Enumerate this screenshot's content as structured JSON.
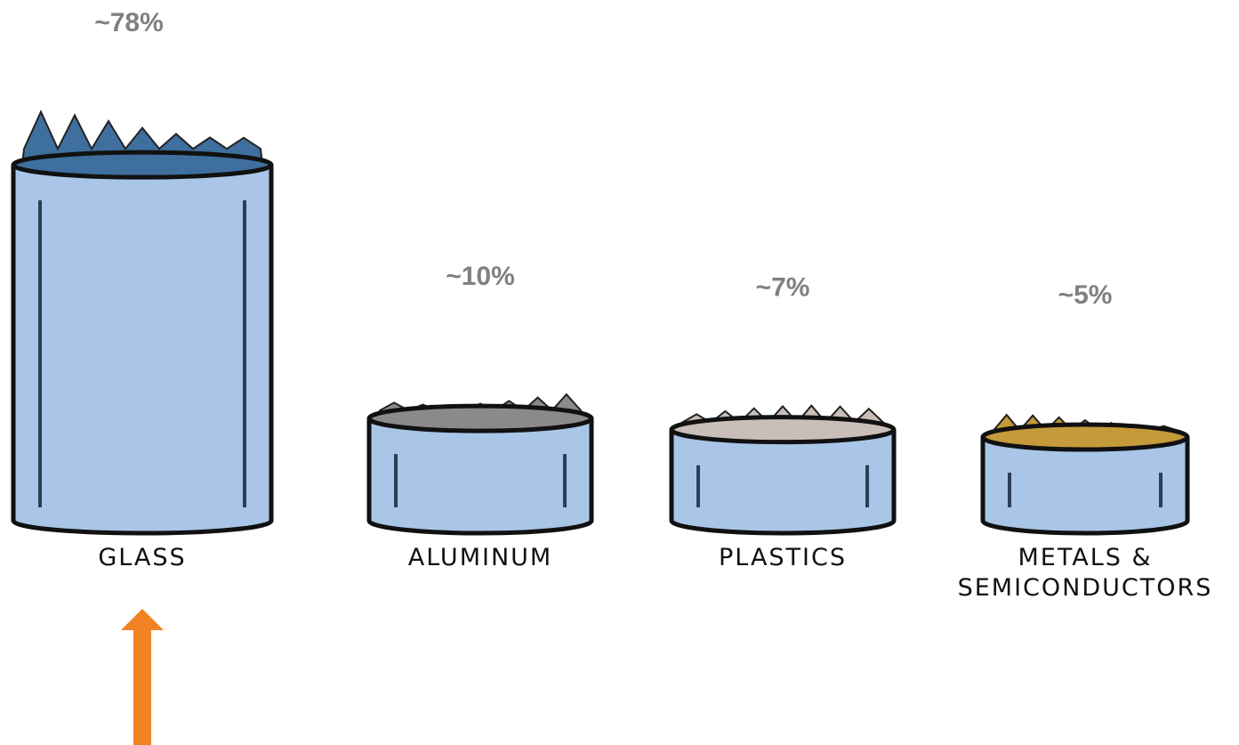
{
  "chart_data": {
    "type": "bar",
    "categories": [
      "GLASS",
      "ALUMINUM",
      "PLASTICS",
      "METALS & SEMICONDUCTORS"
    ],
    "values": [
      78,
      10,
      7,
      5
    ],
    "value_labels": [
      "~78%",
      "~10%",
      "~7%",
      "~5%"
    ],
    "color": "#a9c6e8"
  }
}
